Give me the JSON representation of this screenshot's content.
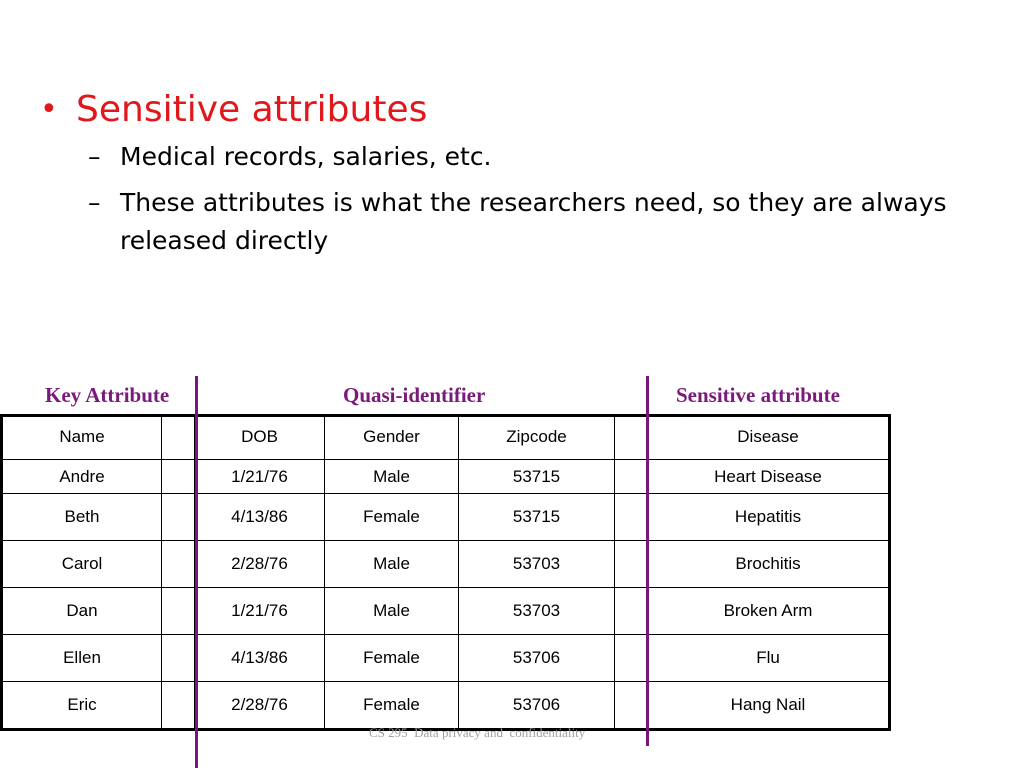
{
  "bullets": {
    "heading": "Sensitive attributes",
    "bullet_symbol": "•",
    "dash_symbol": "–",
    "subitems": [
      "Medical records, salaries, etc.",
      "These attributes is what the researchers need, so they are always released directly"
    ]
  },
  "table_headers": {
    "key_attribute": "Key Attribute",
    "quasi_identifier": "Quasi-identifier",
    "sensitive_attribute": "Sensitive attribute"
  },
  "table": {
    "columns": [
      "Name",
      "DOB",
      "Gender",
      "Zipcode",
      "Disease"
    ],
    "rows": [
      [
        "Andre",
        "1/21/76",
        "Male",
        "53715",
        "Heart Disease"
      ],
      [
        "Beth",
        "4/13/86",
        "Female",
        "53715",
        "Hepatitis"
      ],
      [
        "Carol",
        "2/28/76",
        "Male",
        "53703",
        "Brochitis"
      ],
      [
        "Dan",
        "1/21/76",
        "Male",
        "53703",
        "Broken Arm"
      ],
      [
        "Ellen",
        "4/13/86",
        "Female",
        "53706",
        "Flu"
      ],
      [
        "Eric",
        "2/28/76",
        "Female",
        "53706",
        "Hang Nail"
      ]
    ]
  },
  "footer": "CS 295  Data privacy and  confidentiality",
  "colors": {
    "heading": "#e0181c",
    "attribute_labels": "#7a1a7a",
    "divider_lines": "#7a157a",
    "footer": "#a0a0a0"
  }
}
